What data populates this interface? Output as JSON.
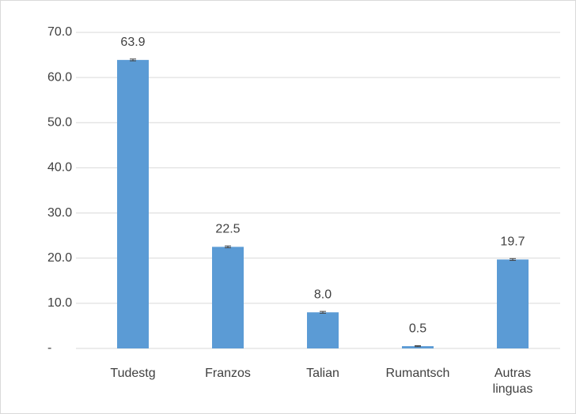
{
  "chart_data": {
    "type": "bar",
    "categories": [
      "Tudestg",
      "Franzos",
      "Talian",
      "Rumantsch",
      "Autras linguas"
    ],
    "values": [
      63.9,
      22.5,
      8.0,
      0.5,
      19.7
    ],
    "value_labels": [
      "63.9",
      "22.5",
      "8.0",
      "0.5",
      "19.7"
    ],
    "errors": [
      0.2,
      0.2,
      0.2,
      0.1,
      0.2
    ],
    "color": "#5b9bd5",
    "ylim": [
      0,
      70
    ],
    "yticks": [
      {
        "value": 0,
        "label": "-"
      },
      {
        "value": 10,
        "label": "10.0"
      },
      {
        "value": 20,
        "label": "20.0"
      },
      {
        "value": 30,
        "label": "30.0"
      },
      {
        "value": 40,
        "label": "40.0"
      },
      {
        "value": 50,
        "label": "50.0"
      },
      {
        "value": 60,
        "label": "60.0"
      },
      {
        "value": 70,
        "label": "70.0"
      }
    ],
    "grid": true
  }
}
